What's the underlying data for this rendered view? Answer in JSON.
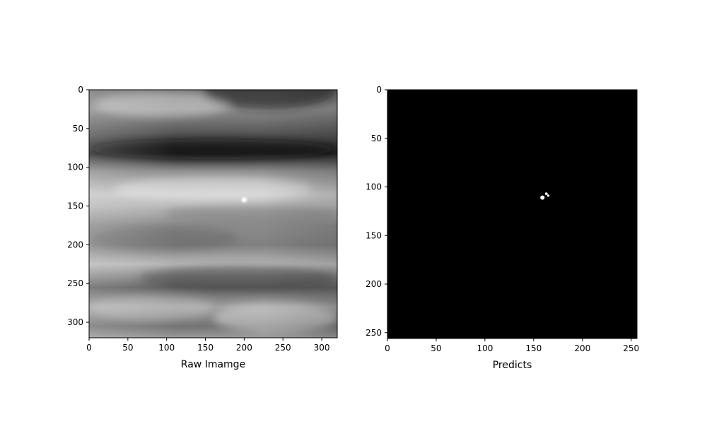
{
  "chart_data": [
    {
      "type": "heatmap",
      "title": "",
      "xlabel": "Raw Imamge",
      "ylabel": "",
      "colormap": "gray",
      "xlim": [
        0,
        320
      ],
      "ylim": [
        320,
        0
      ],
      "xticks": [
        0,
        50,
        100,
        150,
        200,
        250,
        300
      ],
      "yticks": [
        0,
        50,
        100,
        150,
        200,
        250,
        300
      ],
      "bands": [
        {
          "y": 0,
          "value": 0.45
        },
        {
          "y": 25,
          "value": 0.55
        },
        {
          "y": 55,
          "value": 0.35
        },
        {
          "y": 82,
          "value": 0.15
        },
        {
          "y": 105,
          "value": 0.55
        },
        {
          "y": 135,
          "value": 0.78
        },
        {
          "y": 150,
          "value": 0.72
        },
        {
          "y": 175,
          "value": 0.55
        },
        {
          "y": 200,
          "value": 0.5
        },
        {
          "y": 225,
          "value": 0.72
        },
        {
          "y": 255,
          "value": 0.38
        },
        {
          "y": 280,
          "value": 0.62
        },
        {
          "y": 305,
          "value": 0.45
        },
        {
          "y": 320,
          "value": 0.6
        }
      ],
      "bright_spot": {
        "x": 200,
        "y": 142
      }
    },
    {
      "type": "heatmap",
      "title": "",
      "xlabel": "Predicts",
      "ylabel": "",
      "colormap": "gray",
      "xlim": [
        0,
        256
      ],
      "ylim": [
        256,
        0
      ],
      "xticks": [
        0,
        50,
        100,
        150,
        200,
        250
      ],
      "yticks": [
        0,
        50,
        100,
        150,
        200,
        250
      ],
      "background_value": 0,
      "blobs": [
        {
          "x": 159,
          "y": 111,
          "r": 2.2
        },
        {
          "x": 163,
          "y": 107,
          "r": 1.4
        },
        {
          "x": 165,
          "y": 109,
          "r": 1.2
        }
      ]
    }
  ]
}
